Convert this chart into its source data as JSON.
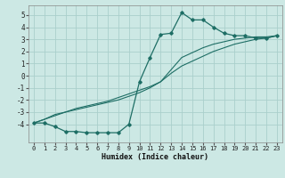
{
  "xlabel": "Humidex (Indice chaleur)",
  "xlim": [
    -0.5,
    23.5
  ],
  "ylim": [
    -5.5,
    5.8
  ],
  "yticks": [
    -4,
    -3,
    -2,
    -1,
    0,
    1,
    2,
    3,
    4,
    5
  ],
  "xticks": [
    0,
    1,
    2,
    3,
    4,
    5,
    6,
    7,
    8,
    9,
    10,
    11,
    12,
    13,
    14,
    15,
    16,
    17,
    18,
    19,
    20,
    21,
    22,
    23
  ],
  "bg_color": "#cce8e4",
  "grid_color": "#aacfcc",
  "line_color": "#1e6e65",
  "line1_x": [
    0,
    1,
    2,
    3,
    4,
    5,
    6,
    7,
    8,
    9,
    10,
    11,
    12,
    13,
    14,
    15,
    16,
    17,
    18,
    19,
    20,
    21,
    22,
    23
  ],
  "line1_y": [
    -3.9,
    -3.9,
    -4.2,
    -4.6,
    -4.6,
    -4.7,
    -4.7,
    -4.7,
    -4.7,
    -4.0,
    -0.5,
    1.5,
    3.4,
    3.5,
    5.2,
    4.6,
    4.6,
    4.0,
    3.5,
    3.3,
    3.3,
    3.1,
    3.1,
    3.3
  ],
  "line2_x": [
    0,
    1,
    2,
    3,
    4,
    5,
    6,
    7,
    8,
    9,
    10,
    11,
    12,
    13,
    14,
    15,
    16,
    17,
    18,
    19,
    20,
    21,
    22,
    23
  ],
  "line2_y": [
    -3.9,
    -3.6,
    -3.3,
    -3.0,
    -2.7,
    -2.5,
    -2.3,
    -2.1,
    -1.8,
    -1.5,
    -1.2,
    -0.9,
    -0.5,
    0.2,
    0.8,
    1.2,
    1.6,
    2.0,
    2.3,
    2.6,
    2.8,
    3.0,
    3.1,
    3.3
  ],
  "line3_x": [
    0,
    1,
    2,
    3,
    4,
    5,
    6,
    7,
    8,
    9,
    10,
    11,
    12,
    13,
    14,
    15,
    16,
    17,
    18,
    19,
    20,
    21,
    22,
    23
  ],
  "line3_y": [
    -3.9,
    -3.6,
    -3.2,
    -3.0,
    -2.8,
    -2.6,
    -2.4,
    -2.2,
    -2.0,
    -1.7,
    -1.4,
    -1.0,
    -0.5,
    0.5,
    1.5,
    1.9,
    2.3,
    2.6,
    2.8,
    3.0,
    3.1,
    3.2,
    3.2,
    3.3
  ]
}
